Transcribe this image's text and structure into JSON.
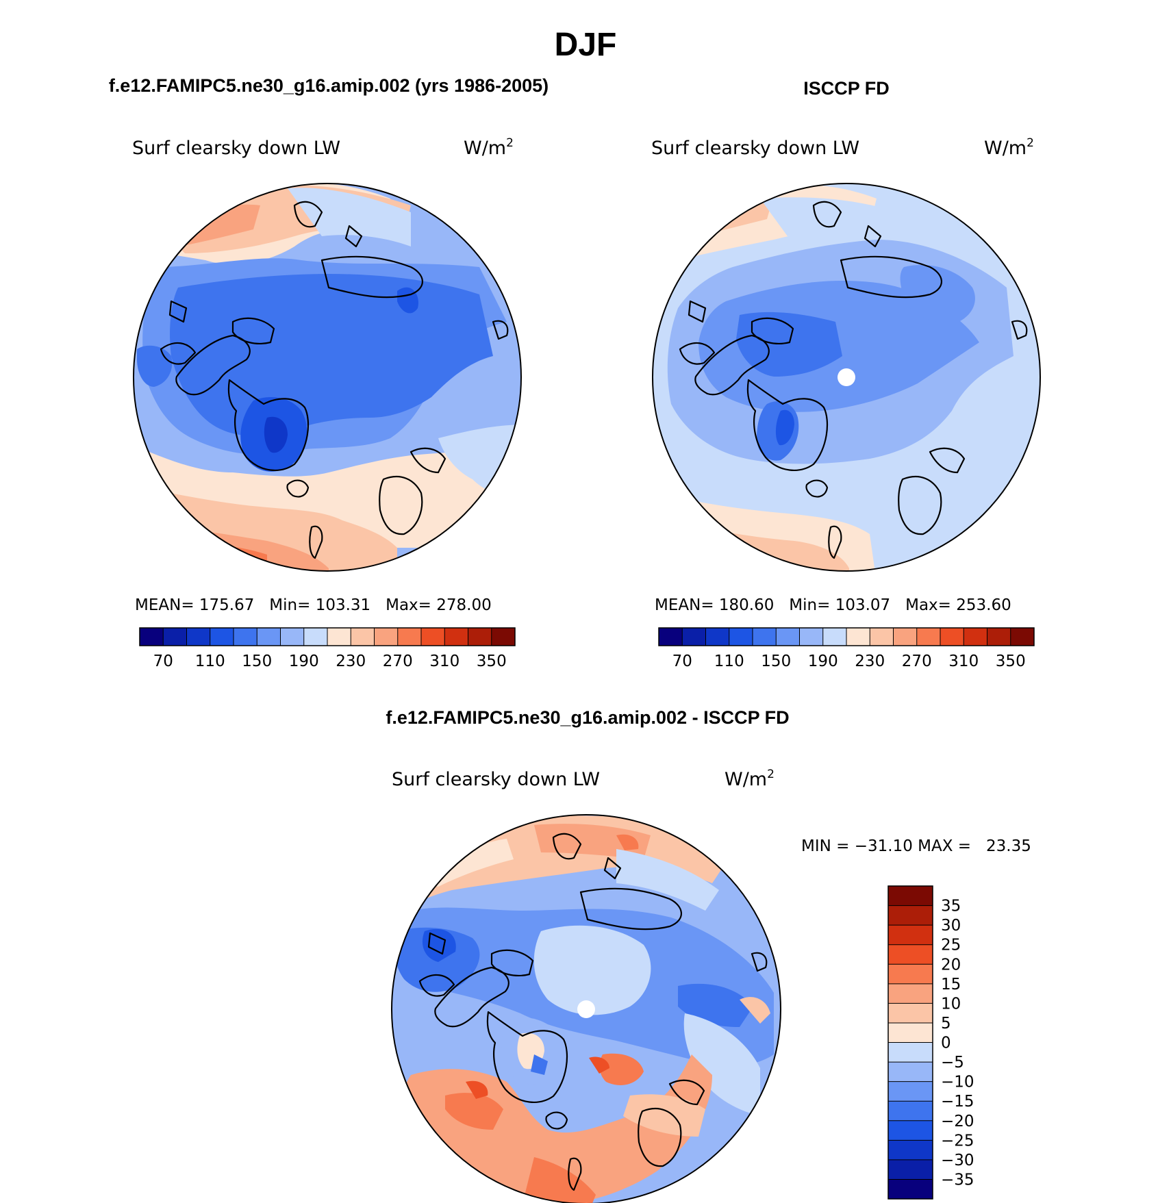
{
  "figure_title": "DJF",
  "panels": [
    {
      "title": "f.e12.FAMIPC5.ne30_g16.amip.002 (yrs 1986-2005)",
      "variable": "Surf clearsky down LW",
      "units": "W/m",
      "units_sup": "2",
      "stats_text": "MEAN= 175.67   Min= 103.31   Max= 278.00",
      "stats": {
        "mean": 175.67,
        "min": 103.31,
        "max": 278.0
      },
      "has_pole_mask": false
    },
    {
      "title": "ISCCP FD",
      "variable": "Surf clearsky down LW",
      "units": "W/m",
      "units_sup": "2",
      "stats_text": "MEAN= 180.60   Min= 103.07   Max= 253.60",
      "stats": {
        "mean": 180.6,
        "min": 103.07,
        "max": 253.6
      },
      "has_pole_mask": true
    },
    {
      "title": "f.e12.FAMIPC5.ne30_g16.amip.002 - ISCCP FD",
      "variable": "Surf clearsky down LW",
      "units": "W/m",
      "units_sup": "2",
      "stats_text": "MIN = −31.10 MAX =   23.35",
      "stats": {
        "min": -31.1,
        "max": 23.35
      },
      "has_pole_mask": true
    }
  ],
  "colorbar_abs": {
    "tick_labels": [
      "70",
      "110",
      "150",
      "190",
      "230",
      "270",
      "310",
      "350"
    ],
    "colors": [
      "#08007d",
      "#0a1fa8",
      "#0f37c8",
      "#1d55e4",
      "#3e74ee",
      "#6a96f5",
      "#98b7f8",
      "#c8dcfb",
      "#fde5d3",
      "#fbc5a7",
      "#f9a37f",
      "#f77a4f",
      "#ed4f25",
      "#d13010",
      "#ac1e08",
      "#7b0a03"
    ]
  },
  "colorbar_diff": {
    "tick_labels": [
      "35",
      "30",
      "25",
      "20",
      "15",
      "10",
      "5",
      "0",
      "−5",
      "−10",
      "−15",
      "−20",
      "−25",
      "−30",
      "−35"
    ],
    "colors": [
      "#7b0a03",
      "#ac1e08",
      "#d13010",
      "#ed4f25",
      "#f77a4f",
      "#f9a37f",
      "#fbc5a7",
      "#fde5d3",
      "#c8dcfb",
      "#98b7f8",
      "#6a96f5",
      "#3e74ee",
      "#1d55e4",
      "#0f37c8",
      "#0a1fa8",
      "#08007d"
    ]
  },
  "chart_data": [
    {
      "type": "heatmap",
      "title": "f.e12.FAMIPC5.ne30_g16.amip.002 (yrs 1986-2005)",
      "variable": "Surf clearsky down LW",
      "units": "W/m2",
      "mean": 175.67,
      "min": 103.31,
      "max": 278.0,
      "levels": [
        70,
        350
      ]
    },
    {
      "type": "heatmap",
      "title": "ISCCP FD",
      "variable": "Surf clearsky down LW",
      "units": "W/m2",
      "mean": 180.6,
      "min": 103.07,
      "max": 253.6,
      "levels": [
        70,
        350
      ]
    },
    {
      "type": "heatmap",
      "title": "f.e12.FAMIPC5.ne30_g16.amip.002 - ISCCP FD",
      "variable": "Surf clearsky down LW",
      "units": "W/m2",
      "min": -31.1,
      "max": 23.35,
      "levels": [
        -35,
        35
      ]
    }
  ]
}
